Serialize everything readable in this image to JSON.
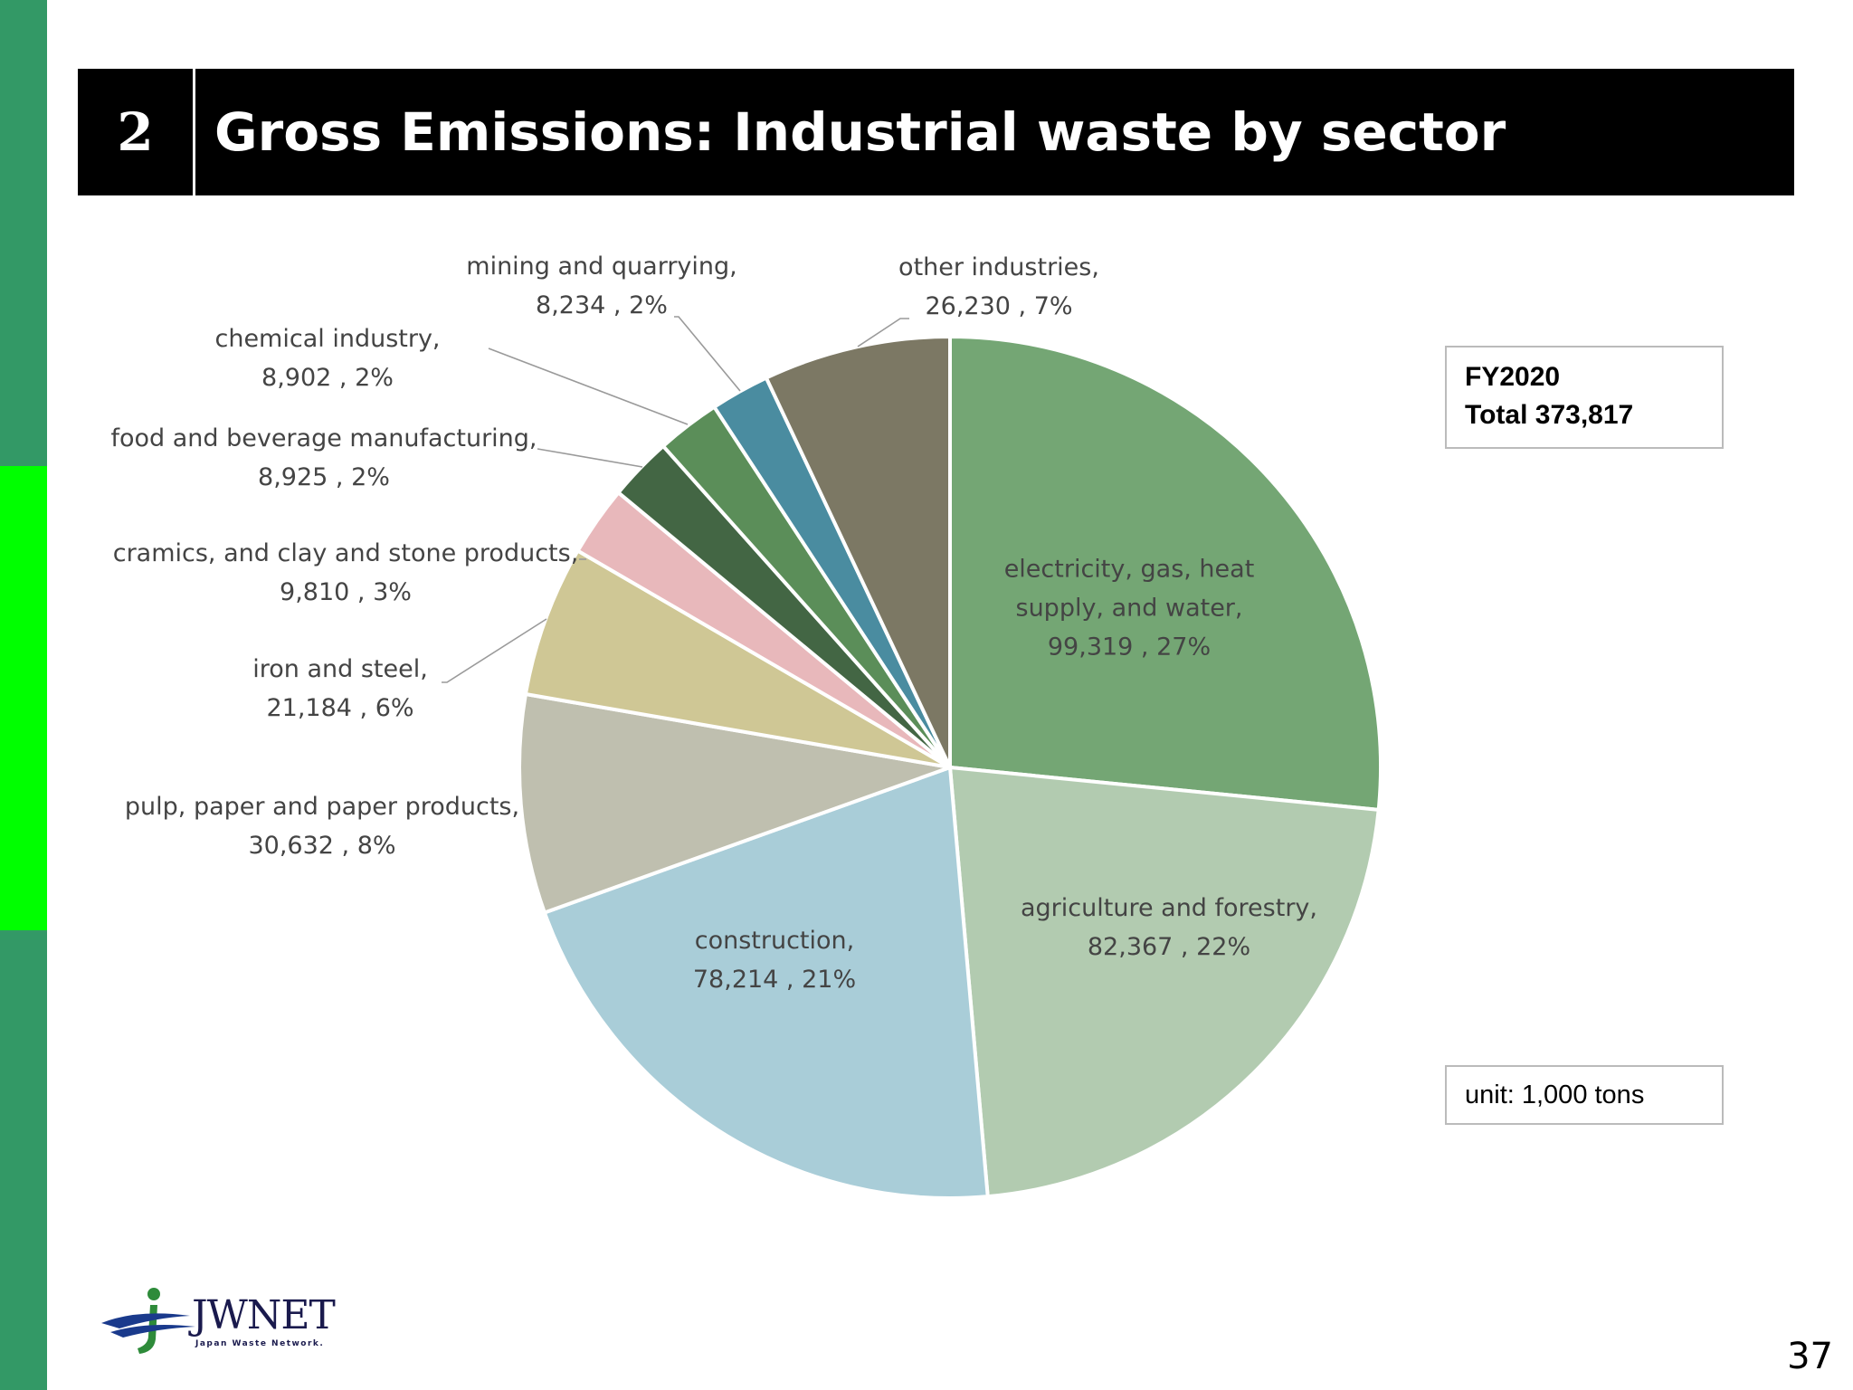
{
  "header": {
    "number": "2",
    "title": "Gross Emissions: Industrial waste by sector"
  },
  "info": {
    "fy": "FY2020",
    "total": "Total 373,817"
  },
  "unit": "unit: 1,000 tons",
  "logo": {
    "text": "JWNET",
    "subtitle": "Japan Waste Network."
  },
  "page_number": "37",
  "chart_data": {
    "type": "pie",
    "start_angle": "12 o'clock",
    "direction": "clockwise",
    "slices": [
      {
        "label_lines": [
          "electricity, gas, heat",
          "supply, and water,",
          "99,319 , 27%"
        ],
        "value": 99319,
        "percent": 27,
        "color": "#74a674",
        "label_position": "inside"
      },
      {
        "label_lines": [
          "agriculture and forestry,",
          "82,367 , 22%"
        ],
        "value": 82367,
        "percent": 22,
        "color": "#b2cbb0",
        "label_position": "inside"
      },
      {
        "label_lines": [
          "construction,",
          "78,214 , 21%"
        ],
        "value": 78214,
        "percent": 21,
        "color": "#a9cdd8",
        "label_position": "inside"
      },
      {
        "label_lines": [
          "pulp, paper and paper products,",
          "30,632 , 8%"
        ],
        "value": 30632,
        "percent": 8,
        "color": "#bfbfaf",
        "label_position": "outside"
      },
      {
        "label_lines": [
          "iron and steel,",
          "21,184 , 6%"
        ],
        "value": 21184,
        "percent": 6,
        "color": "#cfc795",
        "label_position": "outside"
      },
      {
        "label_lines": [
          "cramics, and clay and stone products,",
          "9,810 , 3%"
        ],
        "value": 9810,
        "percent": 3,
        "color": "#e8b8bb",
        "label_position": "outside"
      },
      {
        "label_lines": [
          "food and beverage manufacturing,",
          "8,925 , 2%"
        ],
        "value": 8925,
        "percent": 2,
        "color": "#436644",
        "label_position": "outside"
      },
      {
        "label_lines": [
          "chemical industry,",
          "8,902 , 2%"
        ],
        "value": 8902,
        "percent": 2,
        "color": "#5b8e59",
        "label_position": "outside"
      },
      {
        "label_lines": [
          "mining and quarrying,",
          "8,234 , 2%"
        ],
        "value": 8234,
        "percent": 2,
        "color": "#4a8ca0",
        "label_position": "outside"
      },
      {
        "label_lines": [
          "other industries,",
          "26,230 , 7%"
        ],
        "value": 26230,
        "percent": 7,
        "color": "#7c7864",
        "label_position": "outside"
      }
    ]
  }
}
